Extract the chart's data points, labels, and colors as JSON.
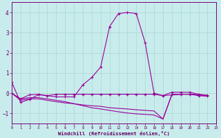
{
  "xlabel": "Windchill (Refroidissement éolien,°C)",
  "background_color": "#c8ecec",
  "grid_color": "#b0d8d8",
  "line_color": "#990099",
  "ylim": [
    -1.5,
    4.5
  ],
  "xlim": [
    0,
    23
  ],
  "yticks": [
    -1,
    0,
    1,
    2,
    3,
    4
  ],
  "xticks": [
    0,
    1,
    2,
    3,
    4,
    5,
    6,
    7,
    8,
    9,
    10,
    11,
    12,
    13,
    14,
    15,
    16,
    17,
    18,
    19,
    20,
    21,
    22,
    23
  ],
  "series": {
    "s0_x": [
      0,
      1,
      2,
      3,
      4,
      5,
      6,
      7,
      8,
      9,
      10,
      11,
      12,
      13,
      14,
      15,
      16,
      17,
      18,
      19,
      20,
      21,
      22
    ],
    "s0_y": [
      0.55,
      -0.45,
      -0.3,
      -0.08,
      -0.12,
      -0.18,
      -0.18,
      -0.18,
      0.42,
      0.78,
      1.3,
      3.3,
      3.95,
      4.0,
      3.95,
      2.5,
      0.0,
      -0.12,
      -0.08,
      -0.05,
      -0.05,
      -0.12,
      -0.15
    ],
    "s1_x": [
      0,
      1,
      2,
      3,
      4,
      5,
      6,
      7,
      8,
      9,
      10,
      11,
      12,
      13,
      14,
      15,
      16,
      17,
      18,
      19,
      20,
      21,
      22
    ],
    "s1_y": [
      0.0,
      -0.28,
      -0.08,
      -0.05,
      -0.12,
      -0.05,
      -0.05,
      -0.05,
      -0.05,
      -0.05,
      -0.05,
      -0.05,
      -0.05,
      -0.05,
      -0.05,
      -0.05,
      -0.05,
      -0.12,
      0.05,
      0.05,
      0.05,
      -0.05,
      -0.1
    ],
    "s2_x": [
      0,
      1,
      2,
      3,
      4,
      5,
      6,
      7,
      8,
      9,
      10,
      11,
      12,
      13,
      14,
      15,
      16,
      17,
      18,
      19,
      20,
      21,
      22
    ],
    "s2_y": [
      0.0,
      -0.35,
      -0.28,
      -0.28,
      -0.35,
      -0.42,
      -0.48,
      -0.52,
      -0.58,
      -0.62,
      -0.65,
      -0.72,
      -0.75,
      -0.78,
      -0.82,
      -0.85,
      -0.88,
      -1.28,
      -0.08,
      -0.05,
      -0.05,
      -0.08,
      -0.12
    ],
    "s3_x": [
      0,
      1,
      2,
      3,
      4,
      5,
      6,
      7,
      8,
      9,
      10,
      11,
      12,
      13,
      14,
      15,
      16,
      17,
      18,
      19,
      20,
      21,
      22
    ],
    "s3_y": [
      0.0,
      -0.28,
      -0.22,
      -0.22,
      -0.28,
      -0.35,
      -0.42,
      -0.52,
      -0.62,
      -0.72,
      -0.78,
      -0.85,
      -0.92,
      -0.98,
      -1.02,
      -1.05,
      -1.08,
      -1.28,
      -0.05,
      -0.05,
      -0.05,
      -0.08,
      -0.12
    ]
  }
}
